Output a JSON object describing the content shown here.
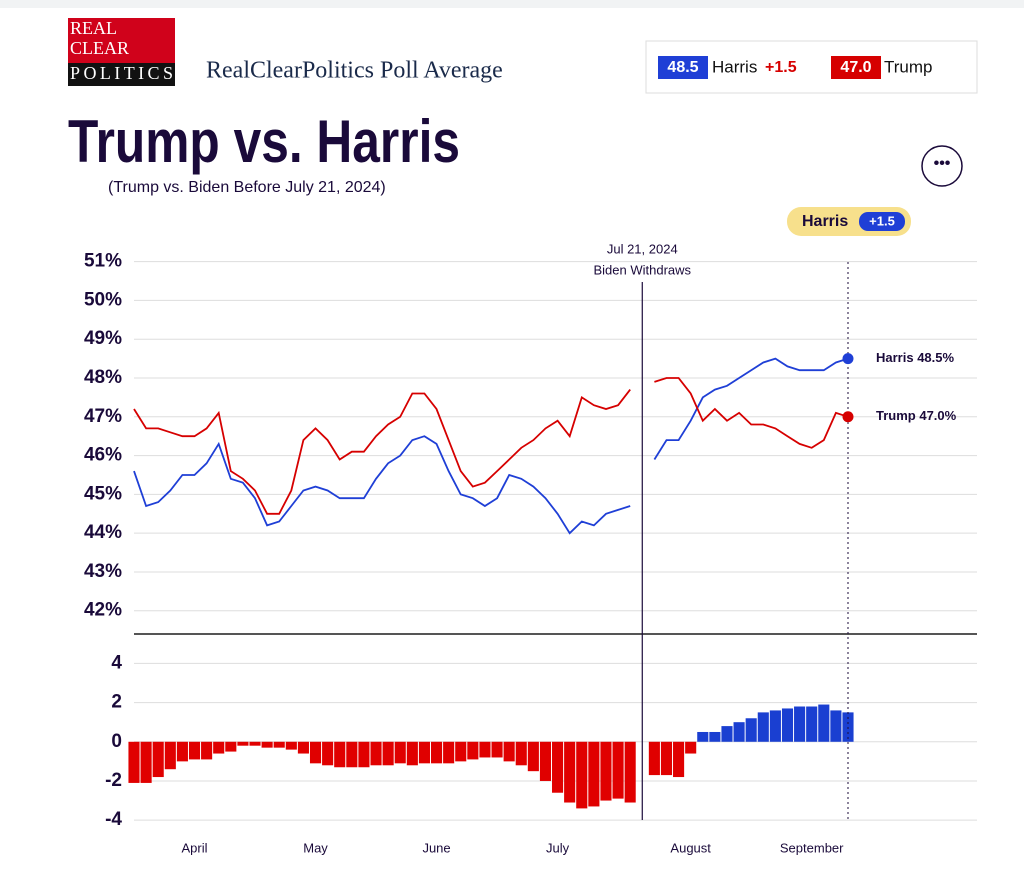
{
  "header": {
    "logo": [
      "REAL",
      "CLEAR",
      "POLITICS"
    ],
    "title": "RealClearPolitics Poll Average",
    "summary": {
      "harris_value": "48.5",
      "harris_name": "Harris",
      "spread": "+1.5",
      "trump_value": "47.0",
      "trump_name": "Trump"
    }
  },
  "chart_data": {
    "type": "line",
    "title": "Trump vs. Harris",
    "subtitle": "(Trump vs. Biden Before July 21, 2024)",
    "leader_badge": {
      "name": "Harris",
      "spread": "+1.5"
    },
    "annotation": [
      "Jul 21, 2024",
      "Biden Withdraws"
    ],
    "categories": [
      null,
      null,
      null,
      null,
      null,
      "April",
      null,
      null,
      null,
      null,
      null,
      null,
      null,
      null,
      null,
      "May",
      null,
      null,
      null,
      null,
      null,
      null,
      null,
      null,
      null,
      "June",
      null,
      null,
      null,
      null,
      null,
      null,
      null,
      null,
      null,
      "July",
      null,
      null,
      null,
      null,
      null,
      null,
      null,
      null,
      null,
      null,
      "August",
      null,
      null,
      null,
      null,
      null,
      null,
      null,
      null,
      null,
      "September",
      null,
      null,
      null
    ],
    "ylim": [
      41.4,
      51.3
    ],
    "yticks": [
      {
        "value": 42,
        "label": "42%"
      },
      {
        "value": 43,
        "label": "43%"
      },
      {
        "value": 44,
        "label": "44%"
      },
      {
        "value": 45,
        "label": "45%"
      },
      {
        "value": 46,
        "label": "46%"
      },
      {
        "value": 47,
        "label": "47%"
      },
      {
        "value": 48,
        "label": "48%"
      },
      {
        "value": 49,
        "label": "49%"
      },
      {
        "value": 50,
        "label": "50%"
      },
      {
        "value": 51,
        "label": "51%"
      }
    ],
    "grid": true,
    "series": [
      {
        "name": "Harris",
        "color": "#1f3fd6",
        "end_label": "Harris 48.5%",
        "values": [
          45.6,
          44.7,
          44.8,
          45.1,
          45.5,
          45.5,
          45.8,
          46.3,
          45.4,
          45.3,
          44.9,
          44.2,
          44.3,
          44.7,
          45.1,
          45.2,
          45.1,
          44.9,
          44.9,
          44.9,
          45.4,
          45.8,
          46.0,
          46.4,
          46.5,
          46.3,
          45.6,
          45.0,
          44.9,
          44.7,
          44.9,
          45.5,
          45.4,
          45.2,
          44.9,
          44.5,
          44.0,
          44.3,
          44.2,
          44.5,
          44.6,
          44.7,
          null,
          45.9,
          46.4,
          46.4,
          46.9,
          47.5,
          47.7,
          47.8,
          48.0,
          48.2,
          48.4,
          48.5,
          48.3,
          48.2,
          48.2,
          48.2,
          48.4,
          48.5
        ]
      },
      {
        "name": "Trump",
        "color": "#d60000",
        "end_label": "Trump 47.0%",
        "values": [
          47.2,
          46.7,
          46.7,
          46.6,
          46.5,
          46.5,
          46.7,
          47.1,
          45.6,
          45.4,
          45.1,
          44.5,
          44.5,
          45.1,
          46.4,
          46.7,
          46.4,
          45.9,
          46.1,
          46.1,
          46.5,
          46.8,
          47.0,
          47.6,
          47.6,
          47.2,
          46.4,
          45.6,
          45.2,
          45.3,
          45.6,
          45.9,
          46.2,
          46.4,
          46.7,
          46.9,
          46.5,
          47.5,
          47.3,
          47.2,
          47.3,
          47.7,
          null,
          47.9,
          48.0,
          48.0,
          47.6,
          46.9,
          47.2,
          46.9,
          47.1,
          46.8,
          46.8,
          46.7,
          46.5,
          46.3,
          46.2,
          46.4,
          47.1,
          47.0
        ]
      }
    ],
    "spread": {
      "type": "bar",
      "ylim": [
        -4.4,
        5.5
      ],
      "yticks": [
        -4,
        -2,
        0,
        2,
        4
      ],
      "positive_color": "#1a3fd1",
      "negative_color": "#e00000",
      "values": [
        -2.1,
        -2.1,
        -1.8,
        -1.4,
        -1.0,
        -0.9,
        -0.9,
        -0.6,
        -0.5,
        -0.2,
        -0.2,
        -0.3,
        -0.3,
        -0.4,
        -0.6,
        -1.1,
        -1.2,
        -1.3,
        -1.3,
        -1.3,
        -1.2,
        -1.2,
        -1.1,
        -1.2,
        -1.1,
        -1.1,
        -1.1,
        -1.0,
        -0.9,
        -0.8,
        -0.8,
        -1.0,
        -1.2,
        -1.5,
        -2.0,
        -2.6,
        -3.1,
        -3.4,
        -3.3,
        -3.0,
        -2.9,
        -3.1,
        null,
        -1.7,
        -1.7,
        -1.8,
        -0.6,
        0.5,
        0.5,
        0.8,
        1.0,
        1.2,
        1.5,
        1.6,
        1.7,
        1.8,
        1.8,
        1.9,
        1.6,
        1.5
      ]
    }
  }
}
